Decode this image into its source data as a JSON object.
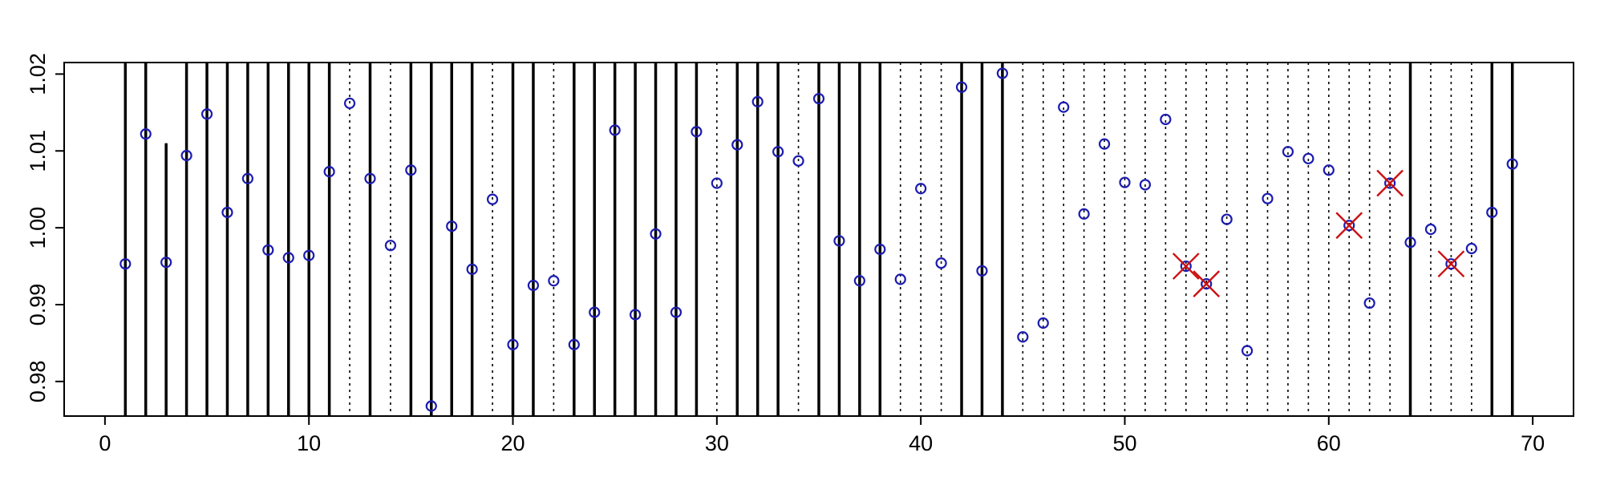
{
  "chart_data": {
    "type": "scatter",
    "title": "",
    "xlabel": "",
    "ylabel": "",
    "xlim": [
      -2,
      72
    ],
    "ylim": [
      0.9755,
      1.0215
    ],
    "x_ticks": [
      0,
      10,
      20,
      30,
      40,
      50,
      60,
      70
    ],
    "y_ticks": [
      0.98,
      0.99,
      1.0,
      1.01,
      1.02
    ],
    "x_tick_labels": [
      "0",
      "10",
      "20",
      "30",
      "40",
      "50",
      "60",
      "70"
    ],
    "y_tick_labels": [
      "0.98",
      "0.99",
      "1.00",
      "1.01",
      "1.02"
    ],
    "grid": false,
    "colors": {
      "points": "#1c1cb0",
      "cross_markers": "#cc1111",
      "lines": "#000000"
    },
    "points": {
      "x": [
        1,
        2,
        3,
        4,
        5,
        6,
        7,
        8,
        9,
        10,
        11,
        12,
        13,
        14,
        15,
        16,
        17,
        18,
        19,
        20,
        21,
        22,
        23,
        24,
        25,
        26,
        27,
        28,
        29,
        30,
        31,
        32,
        33,
        34,
        35,
        36,
        37,
        38,
        39,
        40,
        41,
        42,
        43,
        44,
        45,
        46,
        47,
        48,
        49,
        50,
        51,
        52,
        53,
        54,
        55,
        56,
        57,
        58,
        59,
        60,
        61,
        62,
        63,
        64,
        65,
        66,
        67,
        68,
        69
      ],
      "y": [
        0.9953,
        1.0122,
        0.9955,
        1.0094,
        1.0148,
        1.002,
        1.0064,
        0.9971,
        0.9961,
        0.9964,
        1.0073,
        1.0162,
        1.0064,
        0.9977,
        1.0075,
        0.9768,
        1.0002,
        0.9946,
        1.0037,
        0.9848,
        0.9925,
        0.9931,
        0.9848,
        0.989,
        1.0127,
        0.9887,
        0.9992,
        0.989,
        1.0125,
        1.0058,
        1.0108,
        1.0164,
        1.0099,
        1.0087,
        1.0168,
        0.9983,
        0.9931,
        0.9972,
        0.9933,
        1.0051,
        0.9954,
        1.0183,
        0.9944,
        1.0201,
        0.9858,
        0.9876,
        1.0157,
        1.0018,
        1.0109,
        1.0059,
        1.0056,
        1.0141,
        0.995,
        0.9927,
        1.0011,
        0.984,
        1.0038,
        1.0099,
        1.009,
        1.0075,
        1.0003,
        0.9902,
        1.0058,
        0.9981,
        0.9998,
        0.9953,
        0.9973,
        1.002,
        1.0083
      ]
    },
    "crossed_points": [
      53,
      54,
      61,
      63,
      66
    ],
    "solid_lines": [
      1,
      2,
      4,
      5,
      6,
      7,
      8,
      9,
      10,
      11,
      13,
      15,
      16,
      17,
      18,
      20,
      21,
      23,
      24,
      25,
      26,
      27,
      28,
      29,
      31,
      32,
      33,
      35,
      36,
      37,
      38,
      42,
      43,
      44,
      64,
      68,
      69
    ],
    "short_solid_lines": [
      3
    ],
    "dotted_lines": [
      12,
      14,
      19,
      22,
      30,
      34,
      39,
      40,
      41,
      45,
      46,
      47,
      48,
      49,
      50,
      51,
      52,
      53,
      54,
      55,
      56,
      57,
      58,
      59,
      60,
      61,
      62,
      63,
      65,
      66,
      67
    ]
  }
}
